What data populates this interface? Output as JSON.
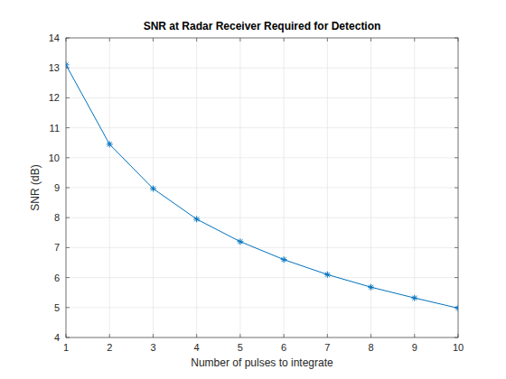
{
  "chart_data": {
    "type": "line",
    "title": "SNR at Radar Receiver Required for Detection",
    "x_label": "Number of pulses to integrate",
    "y_label": "SNR (dB)",
    "x": [
      1,
      2,
      3,
      4,
      5,
      6,
      7,
      8,
      9,
      10
    ],
    "values": [
      13.1,
      10.45,
      8.97,
      7.95,
      7.2,
      6.6,
      6.1,
      5.68,
      5.32,
      4.98
    ],
    "color": "#0072bd",
    "marker": "asterisk",
    "xlim": [
      1,
      10
    ],
    "xticks": [
      1,
      2,
      3,
      4,
      5,
      6,
      7,
      8,
      9,
      10
    ],
    "ylim": [
      4,
      14
    ],
    "yticks": [
      4,
      5,
      6,
      7,
      8,
      9,
      10,
      11,
      12,
      13,
      14
    ],
    "grid": true
  }
}
